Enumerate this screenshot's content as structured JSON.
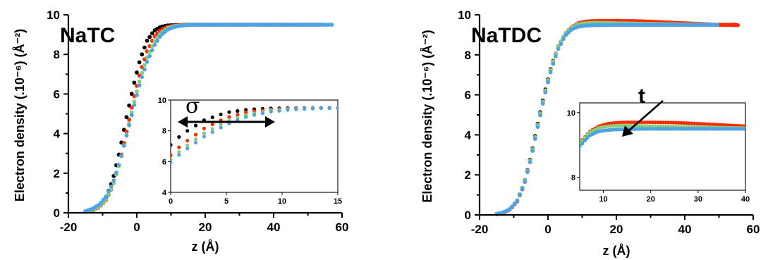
{
  "chart_data": [
    {
      "type": "scatter",
      "title": "NaTC",
      "xlabel": "z (Å)",
      "ylabel": "Electron density (.10⁻⁶) (Å⁻²)",
      "xlim": [
        -20,
        60
      ],
      "ylim": [
        0,
        10
      ],
      "xticks": [
        "-20",
        "0",
        "20",
        "40",
        "60"
      ],
      "yticks": [
        "0",
        "2",
        "4",
        "6",
        "8",
        "10"
      ],
      "grid": false,
      "series": [
        {
          "color": "#000000",
          "x": [
            -15,
            -13,
            -11,
            -9,
            -7,
            -5,
            -3,
            -1,
            1,
            3,
            5,
            7,
            9,
            11,
            13,
            15,
            20,
            30,
            40,
            50,
            54
          ],
          "y": [
            0.05,
            0.13,
            0.32,
            0.76,
            1.68,
            3.12,
            4.83,
            6.4,
            7.77,
            8.69,
            9.19,
            9.39,
            9.46,
            9.48,
            9.49,
            9.5,
            9.5,
            9.5,
            9.5,
            9.5,
            9.5
          ]
        },
        {
          "color": "#ff2a00",
          "x": [
            -15,
            -13,
            -11,
            -9,
            -7,
            -5,
            -3,
            -1,
            1,
            3,
            5,
            7,
            9,
            11,
            13,
            15,
            20,
            30,
            40,
            50,
            54
          ],
          "y": [
            0.05,
            0.12,
            0.28,
            0.64,
            1.35,
            2.55,
            4.1,
            5.72,
            7.1,
            8.15,
            8.86,
            9.24,
            9.39,
            9.46,
            9.48,
            9.49,
            9.5,
            9.5,
            9.5,
            9.5,
            9.5
          ]
        },
        {
          "color": "#88cc77",
          "x": [
            -15,
            -13,
            -11,
            -9,
            -7,
            -5,
            -3,
            -1,
            1,
            3,
            5,
            7,
            9,
            11,
            13,
            15,
            20,
            30,
            40,
            50,
            55
          ],
          "y": [
            0.06,
            0.14,
            0.3,
            0.67,
            1.37,
            2.5,
            3.95,
            5.45,
            6.8,
            7.84,
            8.6,
            9.08,
            9.33,
            9.43,
            9.47,
            9.49,
            9.5,
            9.5,
            9.5,
            9.5,
            9.5
          ]
        },
        {
          "color": "#4da3e8",
          "x": [
            -15,
            -13,
            -11,
            -9,
            -7,
            -5,
            -3,
            -1,
            1,
            3,
            5,
            7,
            9,
            11,
            13,
            15,
            20,
            30,
            40,
            50,
            57
          ],
          "y": [
            0.09,
            0.2,
            0.41,
            0.82,
            1.5,
            2.55,
            3.9,
            5.28,
            6.6,
            7.62,
            8.41,
            8.96,
            9.25,
            9.39,
            9.45,
            9.48,
            9.5,
            9.5,
            9.5,
            9.5,
            9.5
          ]
        }
      ],
      "inset": {
        "xlim": [
          0,
          15
        ],
        "ylim": [
          4,
          10
        ],
        "xticks": [
          "0",
          "5",
          "10",
          "15"
        ],
        "yticks": [
          "4",
          "6",
          "8",
          "10"
        ],
        "annotation": "σ"
      }
    },
    {
      "type": "scatter",
      "title": "NaTDC",
      "xlabel": "z (Å)",
      "ylabel": "Electron density (.10⁻⁶) (Å⁻²)",
      "xlim": [
        -20,
        60
      ],
      "ylim": [
        0,
        10
      ],
      "xticks": [
        "-20",
        "0",
        "20",
        "40",
        "60"
      ],
      "yticks": [
        "0",
        "2",
        "4",
        "6",
        "8",
        "10"
      ],
      "grid": false,
      "series": [
        {
          "color": "#000000",
          "x": [
            -15,
            -13,
            -11,
            -9,
            -7,
            -5,
            -3,
            -1,
            1,
            3,
            5,
            7,
            9,
            11,
            13,
            15,
            20,
            30,
            40,
            50,
            55
          ],
          "y": [
            0.04,
            0.12,
            0.3,
            0.72,
            1.56,
            2.92,
            4.55,
            6.1,
            7.45,
            8.43,
            9.02,
            9.31,
            9.42,
            9.46,
            9.48,
            9.49,
            9.5,
            9.5,
            9.5,
            9.5,
            9.5
          ]
        },
        {
          "color": "#ff2a00",
          "x": [
            -15,
            -13,
            -11,
            -9,
            -7,
            -5,
            -3,
            -1,
            1,
            3,
            5,
            7,
            9,
            11,
            13,
            15,
            20,
            25,
            30,
            35,
            40,
            45,
            50,
            56
          ],
          "y": [
            0.04,
            0.11,
            0.28,
            0.68,
            1.48,
            2.82,
            4.45,
            6.02,
            7.4,
            8.42,
            9.06,
            9.4,
            9.58,
            9.66,
            9.69,
            9.7,
            9.7,
            9.69,
            9.66,
            9.62,
            9.58,
            9.54,
            9.5,
            9.48
          ]
        },
        {
          "color": "#88cc77",
          "x": [
            -15,
            -13,
            -11,
            -9,
            -7,
            -5,
            -3,
            -1,
            1,
            3,
            5,
            7,
            9,
            11,
            13,
            15,
            20,
            30,
            40,
            50
          ],
          "y": [
            0.05,
            0.13,
            0.31,
            0.73,
            1.55,
            2.88,
            4.5,
            6.05,
            7.42,
            8.43,
            9.05,
            9.38,
            9.53,
            9.58,
            9.6,
            9.6,
            9.58,
            9.55,
            9.52,
            9.5
          ]
        },
        {
          "color": "#4da3e8",
          "x": [
            -15,
            -13,
            -11,
            -9,
            -7,
            -5,
            -3,
            -1,
            1,
            3,
            5,
            7,
            9,
            11,
            13,
            15,
            20,
            30,
            40,
            50
          ],
          "y": [
            0.05,
            0.13,
            0.3,
            0.71,
            1.5,
            2.8,
            4.4,
            5.95,
            7.3,
            8.3,
            8.95,
            9.28,
            9.42,
            9.46,
            9.48,
            9.49,
            9.5,
            9.5,
            9.5,
            9.5
          ]
        }
      ],
      "inset": {
        "xlim": [
          5,
          40
        ],
        "ylim": [
          7.6,
          10.3
        ],
        "xticks": [
          "10",
          "20",
          "30",
          "40"
        ],
        "yticks": [
          "8",
          "10"
        ],
        "annotation": "t"
      }
    }
  ]
}
